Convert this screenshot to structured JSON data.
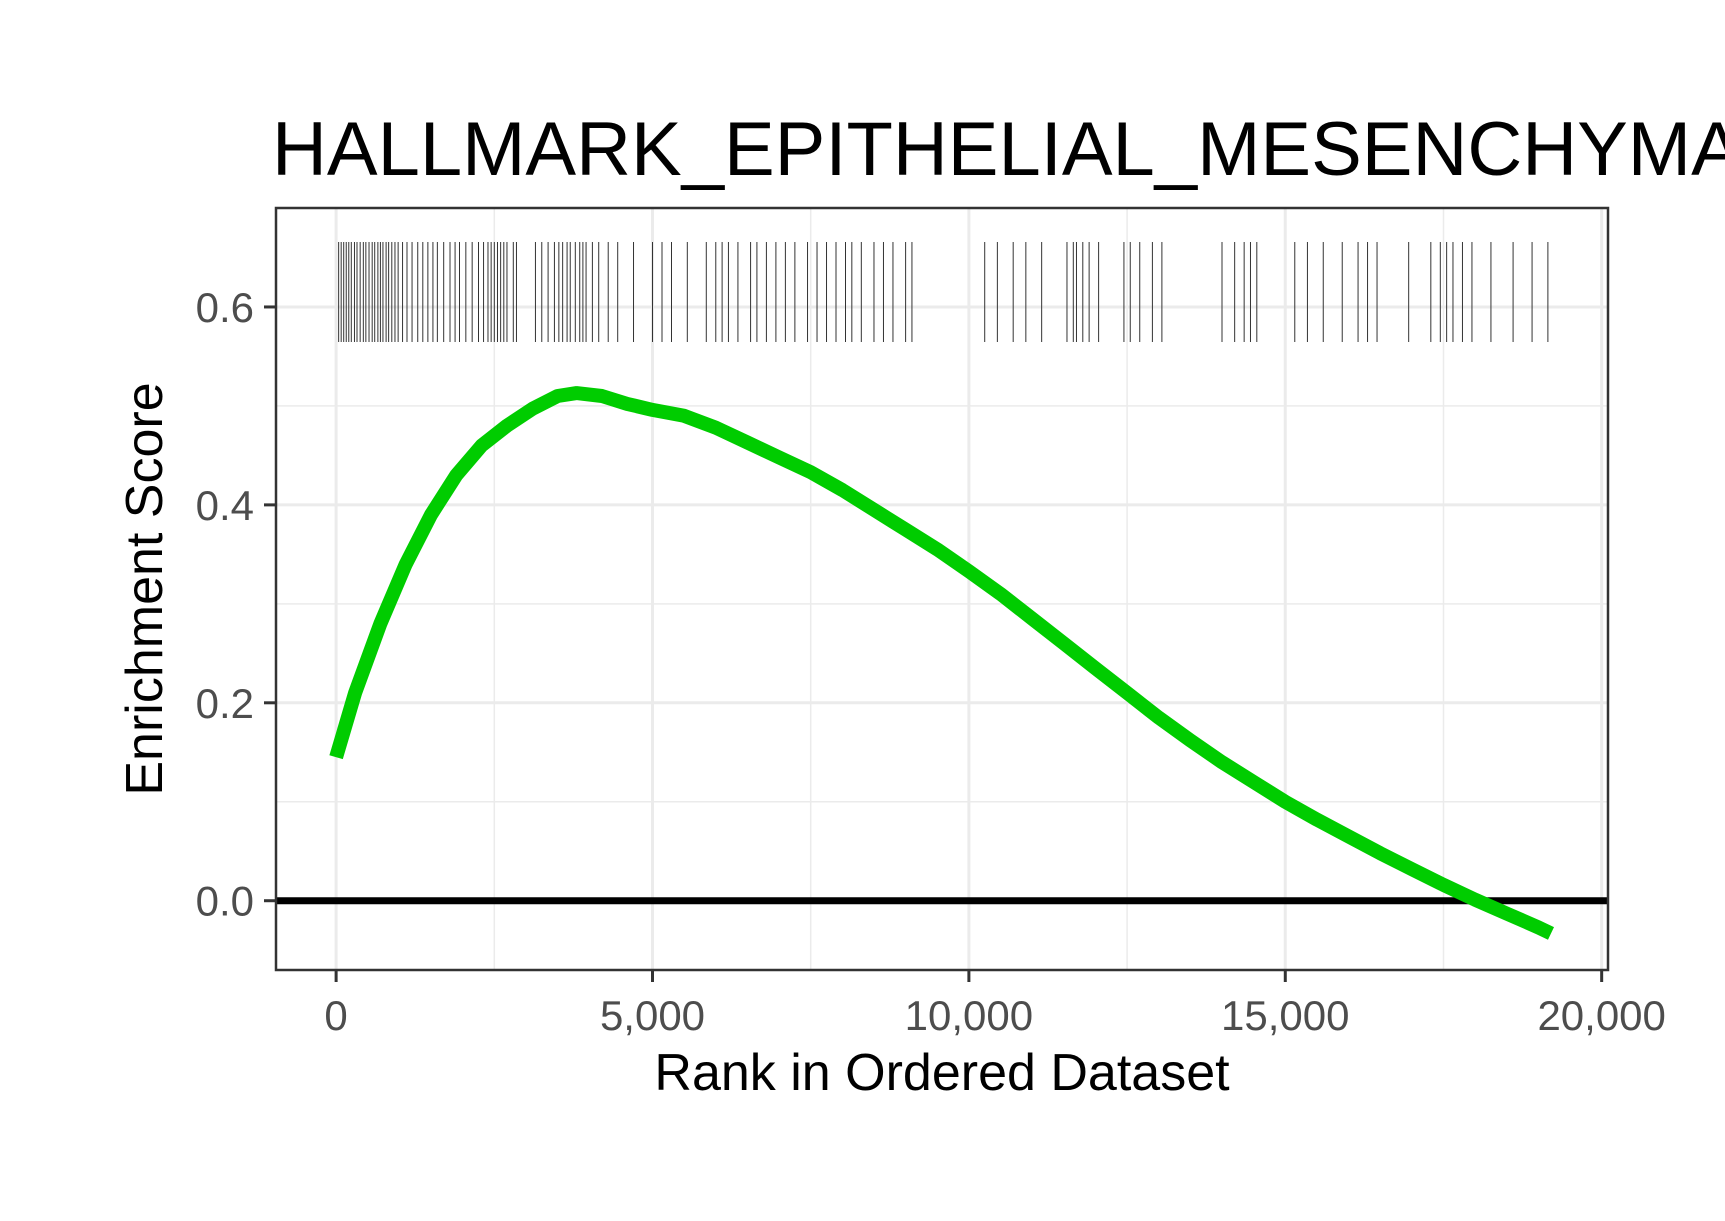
{
  "chart_data": {
    "type": "line",
    "title": "HALLMARK_EPITHELIAL_MESENCHYMAL_TRANSITION",
    "xlabel": "Rank in Ordered Dataset",
    "ylabel": "Enrichment Score",
    "xlim": [
      -950,
      20100
    ],
    "ylim": [
      -0.07,
      0.7
    ],
    "x_ticks": [
      0,
      5000,
      10000,
      15000,
      20000
    ],
    "x_tick_labels": [
      "0",
      "5,000",
      "10,000",
      "15,000",
      "20,000"
    ],
    "y_ticks": [
      0.0,
      0.2,
      0.4,
      0.6
    ],
    "y_tick_labels": [
      "0.0",
      "0.2",
      "0.4",
      "0.6"
    ],
    "grid": true,
    "reference_line": {
      "y": 0,
      "color": "#000000"
    },
    "series": [
      {
        "color": "#00cc00",
        "x": [
          0,
          300,
          700,
          1100,
          1500,
          1900,
          2300,
          2700,
          3100,
          3500,
          3800,
          4200,
          4600,
          5000,
          5500,
          6000,
          6500,
          7000,
          7500,
          8000,
          8500,
          9000,
          9500,
          10000,
          10500,
          11000,
          11500,
          12000,
          12500,
          13000,
          13500,
          14000,
          14500,
          15000,
          15500,
          16000,
          16500,
          17000,
          17500,
          18000,
          18500,
          19000,
          19200
        ],
        "values": [
          0.145,
          0.21,
          0.28,
          0.34,
          0.39,
          0.43,
          0.46,
          0.48,
          0.497,
          0.51,
          0.513,
          0.51,
          0.502,
          0.496,
          0.49,
          0.478,
          0.463,
          0.448,
          0.433,
          0.415,
          0.395,
          0.375,
          0.355,
          0.333,
          0.31,
          0.285,
          0.26,
          0.235,
          0.21,
          0.185,
          0.162,
          0.14,
          0.12,
          0.1,
          0.082,
          0.065,
          0.048,
          0.032,
          0.016,
          0.001,
          -0.013,
          -0.027,
          -0.033
        ]
      }
    ],
    "gene_hits": [
      40,
      80,
      120,
      160,
      200,
      240,
      290,
      330,
      380,
      430,
      470,
      520,
      570,
      610,
      660,
      700,
      740,
      790,
      830,
      880,
      930,
      980,
      1050,
      1120,
      1200,
      1290,
      1370,
      1450,
      1530,
      1600,
      1700,
      1800,
      1880,
      1950,
      2050,
      2150,
      2250,
      2330,
      2400,
      2450,
      2500,
      2550,
      2600,
      2650,
      2700,
      2800,
      2850,
      3150,
      3250,
      3350,
      3450,
      3520,
      3580,
      3650,
      3700,
      3780,
      3850,
      3900,
      3950,
      4050,
      4150,
      4300,
      4450,
      4700,
      5000,
      5150,
      5300,
      5550,
      5850,
      6000,
      6100,
      6200,
      6350,
      6550,
      6650,
      6800,
      6950,
      7100,
      7250,
      7450,
      7600,
      7750,
      7900,
      8050,
      8150,
      8300,
      8500,
      8650,
      8800,
      9000,
      9100,
      10250,
      10450,
      10700,
      10900,
      11150,
      11550,
      11650,
      11700,
      11800,
      11900,
      12050,
      12450,
      12550,
      12700,
      12900,
      13050,
      14000,
      14200,
      14350,
      14450,
      14550,
      15150,
      15350,
      15600,
      15900,
      16150,
      16300,
      16450,
      16950,
      17300,
      17450,
      17550,
      17650,
      17800,
      17950,
      18250,
      18600,
      18900,
      19150
    ]
  }
}
